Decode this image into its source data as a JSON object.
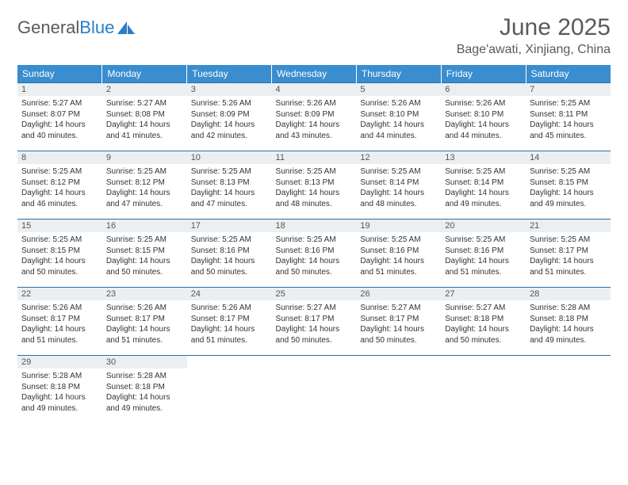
{
  "logo": {
    "text_gray": "General",
    "text_blue": "Blue"
  },
  "title": "June 2025",
  "location": "Bage'awati, Xinjiang, China",
  "colors": {
    "header_bg": "#3a8dce",
    "header_text": "#ffffff",
    "daynum_bg": "#eceff1",
    "border": "#2a6fa5",
    "title_color": "#5a5a5a",
    "body_text": "#333333"
  },
  "day_headers": [
    "Sunday",
    "Monday",
    "Tuesday",
    "Wednesday",
    "Thursday",
    "Friday",
    "Saturday"
  ],
  "weeks": [
    [
      {
        "n": "1",
        "sr": "5:27 AM",
        "ss": "8:07 PM",
        "dl": "14 hours and 40 minutes."
      },
      {
        "n": "2",
        "sr": "5:27 AM",
        "ss": "8:08 PM",
        "dl": "14 hours and 41 minutes."
      },
      {
        "n": "3",
        "sr": "5:26 AM",
        "ss": "8:09 PM",
        "dl": "14 hours and 42 minutes."
      },
      {
        "n": "4",
        "sr": "5:26 AM",
        "ss": "8:09 PM",
        "dl": "14 hours and 43 minutes."
      },
      {
        "n": "5",
        "sr": "5:26 AM",
        "ss": "8:10 PM",
        "dl": "14 hours and 44 minutes."
      },
      {
        "n": "6",
        "sr": "5:26 AM",
        "ss": "8:10 PM",
        "dl": "14 hours and 44 minutes."
      },
      {
        "n": "7",
        "sr": "5:25 AM",
        "ss": "8:11 PM",
        "dl": "14 hours and 45 minutes."
      }
    ],
    [
      {
        "n": "8",
        "sr": "5:25 AM",
        "ss": "8:12 PM",
        "dl": "14 hours and 46 minutes."
      },
      {
        "n": "9",
        "sr": "5:25 AM",
        "ss": "8:12 PM",
        "dl": "14 hours and 47 minutes."
      },
      {
        "n": "10",
        "sr": "5:25 AM",
        "ss": "8:13 PM",
        "dl": "14 hours and 47 minutes."
      },
      {
        "n": "11",
        "sr": "5:25 AM",
        "ss": "8:13 PM",
        "dl": "14 hours and 48 minutes."
      },
      {
        "n": "12",
        "sr": "5:25 AM",
        "ss": "8:14 PM",
        "dl": "14 hours and 48 minutes."
      },
      {
        "n": "13",
        "sr": "5:25 AM",
        "ss": "8:14 PM",
        "dl": "14 hours and 49 minutes."
      },
      {
        "n": "14",
        "sr": "5:25 AM",
        "ss": "8:15 PM",
        "dl": "14 hours and 49 minutes."
      }
    ],
    [
      {
        "n": "15",
        "sr": "5:25 AM",
        "ss": "8:15 PM",
        "dl": "14 hours and 50 minutes."
      },
      {
        "n": "16",
        "sr": "5:25 AM",
        "ss": "8:15 PM",
        "dl": "14 hours and 50 minutes."
      },
      {
        "n": "17",
        "sr": "5:25 AM",
        "ss": "8:16 PM",
        "dl": "14 hours and 50 minutes."
      },
      {
        "n": "18",
        "sr": "5:25 AM",
        "ss": "8:16 PM",
        "dl": "14 hours and 50 minutes."
      },
      {
        "n": "19",
        "sr": "5:25 AM",
        "ss": "8:16 PM",
        "dl": "14 hours and 51 minutes."
      },
      {
        "n": "20",
        "sr": "5:25 AM",
        "ss": "8:16 PM",
        "dl": "14 hours and 51 minutes."
      },
      {
        "n": "21",
        "sr": "5:25 AM",
        "ss": "8:17 PM",
        "dl": "14 hours and 51 minutes."
      }
    ],
    [
      {
        "n": "22",
        "sr": "5:26 AM",
        "ss": "8:17 PM",
        "dl": "14 hours and 51 minutes."
      },
      {
        "n": "23",
        "sr": "5:26 AM",
        "ss": "8:17 PM",
        "dl": "14 hours and 51 minutes."
      },
      {
        "n": "24",
        "sr": "5:26 AM",
        "ss": "8:17 PM",
        "dl": "14 hours and 51 minutes."
      },
      {
        "n": "25",
        "sr": "5:27 AM",
        "ss": "8:17 PM",
        "dl": "14 hours and 50 minutes."
      },
      {
        "n": "26",
        "sr": "5:27 AM",
        "ss": "8:17 PM",
        "dl": "14 hours and 50 minutes."
      },
      {
        "n": "27",
        "sr": "5:27 AM",
        "ss": "8:18 PM",
        "dl": "14 hours and 50 minutes."
      },
      {
        "n": "28",
        "sr": "5:28 AM",
        "ss": "8:18 PM",
        "dl": "14 hours and 49 minutes."
      }
    ],
    [
      {
        "n": "29",
        "sr": "5:28 AM",
        "ss": "8:18 PM",
        "dl": "14 hours and 49 minutes."
      },
      {
        "n": "30",
        "sr": "5:28 AM",
        "ss": "8:18 PM",
        "dl": "14 hours and 49 minutes."
      },
      null,
      null,
      null,
      null,
      null
    ]
  ],
  "labels": {
    "sunrise": "Sunrise:",
    "sunset": "Sunset:",
    "daylight": "Daylight:"
  }
}
